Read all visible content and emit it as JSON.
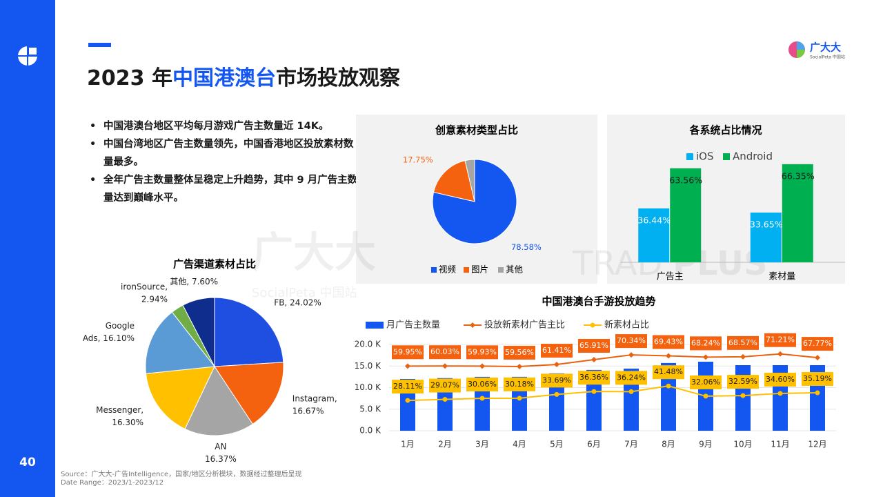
{
  "header": {
    "title_parts": [
      "2023 年",
      "中国港澳台",
      "市场投放观察"
    ],
    "logo": "广大大",
    "logo_sub": "SocialPeta 中国站"
  },
  "bullets": [
    "中国港澳台地区平均每月游戏广告主数量近 14K。",
    "中国台湾地区广告主数量领先，中国香港地区投放素材数量最多。",
    "全年广告主数量整体呈稳定上升趋势，其中 9 月广告主数量达到巅峰水平。"
  ],
  "page_number": "40",
  "source": [
    "Source：广大大-广告Intelligence，国家/地区分析模块，数据经过整理后呈现",
    "Date Range：2023/1-2023/12"
  ],
  "watermarks": [
    "广大大",
    "SocialPeta 中国站",
    "TRAD",
    "PLUS"
  ],
  "chart_data": [
    {
      "type": "pie",
      "title": "创意素材类型占比",
      "legend": "bottom",
      "categories": [
        "视频",
        "图片",
        "其他"
      ],
      "values": [
        78.58,
        17.75,
        3.67
      ],
      "value_labels": [
        "78.58%",
        "17.75%",
        null
      ],
      "colors": [
        "#1456f0",
        "#f4620f",
        "#a5a5a5"
      ]
    },
    {
      "type": "bar",
      "title": "各系统占比情况",
      "legend": "top",
      "categories": [
        "广告主",
        "素材量"
      ],
      "ylim": [
        0,
        70
      ],
      "series": [
        {
          "name": "iOS",
          "color": "#00b0f0",
          "values": [
            36.44,
            33.65
          ],
          "value_labels": [
            "36.44%",
            "33.65%"
          ]
        },
        {
          "name": "Android",
          "color": "#00b050",
          "values": [
            63.56,
            66.35
          ],
          "value_labels": [
            "63.56%",
            "66.35%"
          ]
        }
      ]
    },
    {
      "type": "pie",
      "title": "广告渠道素材占比",
      "categories": [
        "FB",
        "Instagram",
        "AN",
        "Messenger",
        "Google Ads",
        "ironSource",
        "其他"
      ],
      "values": [
        24.02,
        16.67,
        16.37,
        16.3,
        16.1,
        2.94,
        7.6
      ],
      "value_labels": [
        [
          "FB, 24.02%"
        ],
        [
          "Instagram,",
          "16.67%"
        ],
        [
          "AN",
          "16.37%"
        ],
        [
          "Messenger,",
          "16.30%"
        ],
        [
          "Google",
          "Ads, 16.10%"
        ],
        [
          "ironSource,",
          "2.94%"
        ],
        [
          "其他, 7.60%"
        ]
      ],
      "colors": [
        "#1f4fe0",
        "#f4620f",
        "#a5a5a5",
        "#ffc000",
        "#5b9bd5",
        "#70ad47",
        "#0f2d8c"
      ]
    },
    {
      "type": "combo",
      "title": "中国港澳台手游投放趋势",
      "legend": "top",
      "grid": true,
      "categories": [
        "1月",
        "2月",
        "3月",
        "4月",
        "5月",
        "6月",
        "7月",
        "8月",
        "9月",
        "10月",
        "11月",
        "12月"
      ],
      "ylim": [
        0,
        20
      ],
      "yticks": [
        {
          "value": 0,
          "label": "0.0 K"
        },
        {
          "value": 5,
          "label": "5.0 K"
        },
        {
          "value": 10,
          "label": "10.0 K"
        },
        {
          "value": 15,
          "label": "15.0 K"
        },
        {
          "value": 20,
          "label": "20.0 K"
        }
      ],
      "y2lim": [
        0,
        80
      ],
      "series": [
        {
          "name": "月广告主数量",
          "type": "bar",
          "color": "#1456f0",
          "values": [
            12.0,
            12.2,
            12.5,
            12.5,
            13.3,
            14.1,
            14.4,
            15.7,
            16.0,
            15.2,
            15.2,
            15.2
          ]
        },
        {
          "name": "投放新素材广告主比",
          "type": "line",
          "axis": "y2",
          "color": "#e8620f",
          "marker": "diamond",
          "values": [
            59.95,
            60.03,
            59.93,
            59.56,
            61.41,
            65.91,
            70.34,
            69.43,
            68.24,
            68.57,
            71.21,
            67.77
          ],
          "value_labels": [
            "59.95%",
            "60.03%",
            "59.93%",
            "59.56%",
            "61.41%",
            "65.91%",
            "70.34%",
            "69.43%",
            "68.24%",
            "68.57%",
            "71.21%",
            "67.77%"
          ]
        },
        {
          "name": "新素材占比",
          "type": "line",
          "axis": "y2",
          "color": "#ffc000",
          "marker": "circle",
          "values": [
            28.11,
            29.07,
            30.06,
            30.18,
            33.69,
            36.36,
            36.24,
            41.48,
            32.06,
            32.59,
            34.6,
            35.19
          ],
          "value_labels": [
            "28.11%",
            "29.07%",
            "30.06%",
            "30.18%",
            "33.69%",
            "36.36%",
            "36.24%",
            "41.48%",
            "32.06%",
            "32.59%",
            "34.60%",
            "35.19%"
          ]
        }
      ]
    }
  ]
}
